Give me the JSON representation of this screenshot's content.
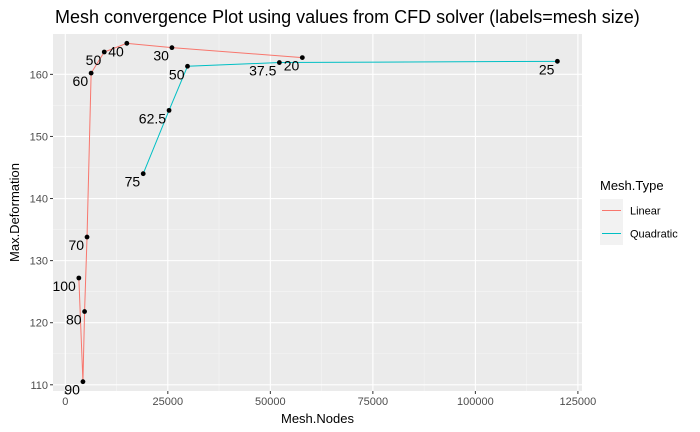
{
  "chart_data": {
    "type": "line",
    "title": "Mesh convergence Plot using values from CFD solver (labels=mesh size)",
    "xlabel": "Mesh.Nodes",
    "ylabel": "Max.Deformation",
    "xlim": [
      -3000,
      126000
    ],
    "ylim": [
      109,
      166.5
    ],
    "xticks": [
      0,
      25000,
      50000,
      75000,
      100000,
      125000
    ],
    "xtick_labels": [
      "0",
      "25000",
      "50000",
      "75000",
      "100000",
      "125000"
    ],
    "yticks": [
      110,
      120,
      130,
      140,
      150,
      160
    ],
    "ytick_labels": [
      "110",
      "120",
      "130",
      "140",
      "150",
      "160"
    ],
    "grid": true,
    "legend": {
      "title": "Mesh.Type",
      "position": "right"
    },
    "series": [
      {
        "name": "Linear",
        "color": "#F8766D",
        "points": [
          {
            "label": "90",
            "x": 4300,
            "y": 110.5
          },
          {
            "label": "80",
            "x": 4700,
            "y": 121.8
          },
          {
            "label": "100",
            "x": 3300,
            "y": 127.2
          },
          {
            "label": "70",
            "x": 5300,
            "y": 133.8
          },
          {
            "label": "60",
            "x": 6300,
            "y": 160.2
          },
          {
            "label": "50",
            "x": 9500,
            "y": 163.6
          },
          {
            "label": "40",
            "x": 15000,
            "y": 165.0
          },
          {
            "label": "30",
            "x": 26000,
            "y": 164.3
          },
          {
            "label": "20",
            "x": 57800,
            "y": 162.7
          }
        ]
      },
      {
        "name": "Quadratic",
        "color": "#00BFC4",
        "points": [
          {
            "label": "75",
            "x": 19000,
            "y": 144.0
          },
          {
            "label": "62.5",
            "x": 25300,
            "y": 154.2
          },
          {
            "label": "50",
            "x": 29800,
            "y": 161.3
          },
          {
            "label": "37.5",
            "x": 52200,
            "y": 161.9
          },
          {
            "label": "25",
            "x": 120000,
            "y": 162.1
          }
        ]
      }
    ]
  }
}
